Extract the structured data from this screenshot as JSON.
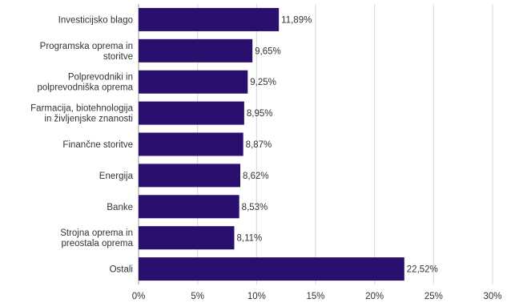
{
  "chart_data": {
    "type": "bar",
    "orientation": "horizontal",
    "title": "",
    "xlabel": "",
    "ylabel": "",
    "categories": [
      [
        "Investicijsko blago"
      ],
      [
        "Programska oprema in",
        "storitve"
      ],
      [
        "Polprevodniki in",
        "polprevodniška oprema"
      ],
      [
        "Farmacija, biotehnologija",
        "in življenjske znanosti"
      ],
      [
        "Finančne storitve"
      ],
      [
        "Energija"
      ],
      [
        "Banke"
      ],
      [
        "Strojna oprema in",
        "preostala oprema"
      ],
      [
        "Ostali"
      ]
    ],
    "values": [
      11.89,
      9.65,
      9.25,
      8.95,
      8.87,
      8.62,
      8.53,
      8.11,
      22.52
    ],
    "value_labels": [
      "11,89%",
      "9,65%",
      "9,25%",
      "8,95%",
      "8,87%",
      "8,62%",
      "8,53%",
      "8,11%",
      "22,52%"
    ],
    "xlim": [
      0,
      30
    ],
    "xticks": [
      0,
      5,
      10,
      15,
      20,
      25,
      30
    ],
    "xtick_labels": [
      "0%",
      "5%",
      "10%",
      "15%",
      "20%",
      "25%",
      "30%"
    ],
    "grid": "vertical",
    "legend": "none",
    "bar_color": "#2a0f6e"
  }
}
